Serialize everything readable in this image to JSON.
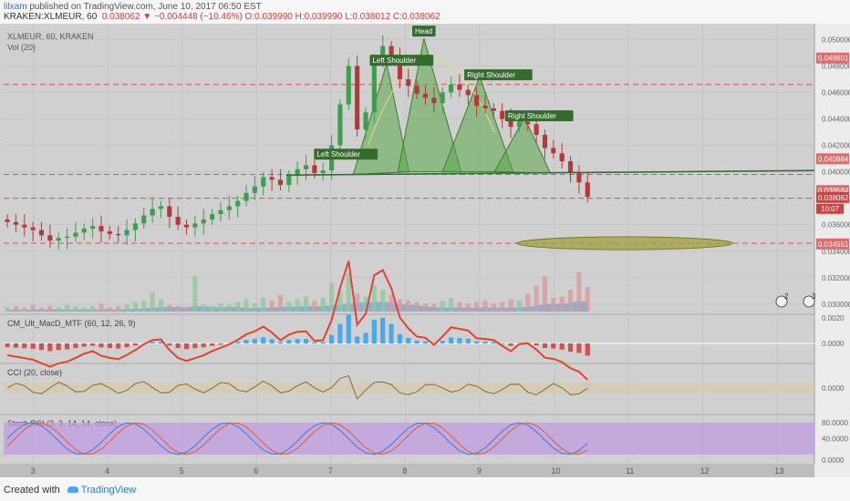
{
  "header": {
    "user": "lilxam",
    "published_text": " published on TradingView.com, June 10, 2017 06:50 EST",
    "symbol_line": "KRAKEN:XLMEUR, 60",
    "last": "0.038062",
    "change": "−0.004448 (−10.46%)",
    "ohlc": "O:0.039990 H:0.039990 L:0.038012 C:0.038062"
  },
  "footer": {
    "created_with": "Created with",
    "brand": "TradingView"
  },
  "chart_data": {
    "type": "candlestick",
    "symbol_label": "XLMEUR, 60, KRAKEN",
    "volume_label": "Vol (20)",
    "ylim": [
      0.0293,
      0.0512
    ],
    "price_ticks": [
      0.03,
      0.032,
      0.034,
      0.036,
      0.038,
      0.04,
      0.042,
      0.044,
      0.046,
      0.048,
      0.05
    ],
    "price_tick_labels": [
      "0.030000",
      "0.032000",
      "0.034000",
      "0.036000",
      "0.038000",
      "0.040000",
      "0.042000",
      "0.044000",
      "0.046000",
      "0.048000",
      "0.050000"
    ],
    "x_labels": [
      "3",
      "4",
      "5",
      "6",
      "7",
      "8",
      "9",
      "10",
      "11",
      "12",
      "13"
    ],
    "price_markers": [
      {
        "value": 0.048601,
        "label": "0.048601"
      },
      {
        "value": 0.040984,
        "label": "0.040984"
      },
      {
        "value": 0.038584,
        "label": "0.038584"
      },
      {
        "value": 0.038062,
        "label": "0.038062"
      },
      {
        "value": 0.034551,
        "label": "0.034551"
      }
    ],
    "countdown": "10:07",
    "dashed_levels": [
      0.0466,
      0.0398,
      0.038,
      0.0346
    ],
    "neckline": {
      "from": [
        6.4,
        0.03975
      ],
      "to": [
        13.5,
        0.0401
      ]
    },
    "target_zone": {
      "x": [
        9.5,
        12.4
      ],
      "y": 0.0346
    },
    "annotations": [
      {
        "text": "Left Shoulder",
        "x": 7.2,
        "y": 0.0412
      },
      {
        "text": "Left Shoulder",
        "x": 7.95,
        "y": 0.0483
      },
      {
        "text": "Head",
        "x": 8.25,
        "y": 0.0505
      },
      {
        "text": "Right Shoulder",
        "x": 9.25,
        "y": 0.0472
      },
      {
        "text": "Right Shoulder",
        "x": 9.8,
        "y": 0.0441
      }
    ],
    "close_series": [
      0.0362,
      0.036,
      0.0358,
      0.0356,
      0.0352,
      0.0348,
      0.035,
      0.0351,
      0.0354,
      0.0357,
      0.0359,
      0.0355,
      0.0353,
      0.0352,
      0.0356,
      0.0361,
      0.0367,
      0.0372,
      0.0374,
      0.0366,
      0.036,
      0.0358,
      0.0361,
      0.0364,
      0.0368,
      0.0371,
      0.0374,
      0.0378,
      0.0384,
      0.0389,
      0.0396,
      0.0394,
      0.039,
      0.0397,
      0.0402,
      0.0405,
      0.0399,
      0.0401,
      0.042,
      0.0451,
      0.048,
      0.0432,
      0.0445,
      0.0483,
      0.0495,
      0.0488,
      0.047,
      0.0465,
      0.0459,
      0.0456,
      0.0452,
      0.046,
      0.0466,
      0.0462,
      0.0458,
      0.045,
      0.0448,
      0.0446,
      0.044,
      0.0434,
      0.0438,
      0.0436,
      0.0428,
      0.0418,
      0.0414,
      0.0408,
      0.0399,
      0.0392,
      0.0381
    ],
    "volume_series": [
      0.3,
      0.4,
      0.3,
      0.5,
      0.3,
      0.4,
      0.3,
      0.5,
      0.4,
      0.3,
      0.4,
      0.6,
      0.3,
      0.4,
      0.5,
      0.7,
      0.8,
      1.4,
      0.9,
      0.5,
      0.4,
      0.3,
      2.6,
      0.5,
      0.4,
      0.6,
      0.5,
      0.7,
      0.9,
      0.6,
      1.0,
      0.8,
      1.2,
      0.7,
      0.9,
      1.1,
      0.8,
      1.0,
      2.1,
      1.5,
      2.8,
      1.3,
      1.1,
      1.9,
      1.6,
      1.2,
      0.9,
      0.8,
      0.7,
      0.6,
      0.6,
      0.8,
      1.0,
      0.7,
      0.6,
      0.7,
      0.8,
      0.6,
      0.7,
      0.9,
      0.8,
      1.3,
      1.9,
      2.6,
      1.0,
      1.1,
      1.6,
      2.9,
      1.8
    ],
    "macd": {
      "label": "CM_Ult_MacD_MTF (60, 12, 26, 9)",
      "zero_label": "0.0000",
      "top_label": "0.0020"
    },
    "cci": {
      "label": "CCI (20, close)",
      "zero_label": "0.0000"
    },
    "stoch_rsi": {
      "label": "Stoch RSI (3, 3, 14, 14, close)",
      "upper_label": "80.0000",
      "mid_label": "40.0000",
      "lower_label": "0.0000"
    },
    "alerts": [
      "2",
      "3"
    ]
  }
}
